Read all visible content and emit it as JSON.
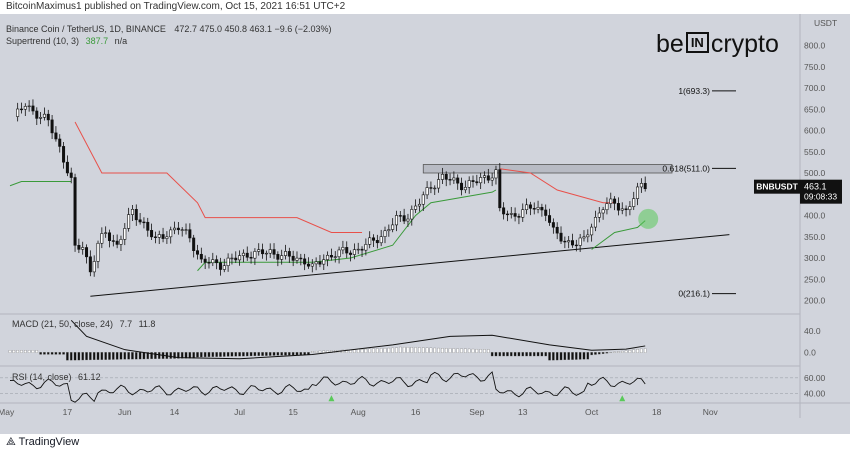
{
  "header": {
    "published": "BitcoinMaximus1 published on TradingView.com, Oct 15, 2021 16:51 UTC+2"
  },
  "legend": {
    "symbol": "Binance Coin / TetherUS, 1D, BINANCE",
    "ohlc": "472.7   475.0   450.8   463.1  −9.6 (−2.03%)",
    "supertrend_label": "Supertrend (10, 3)",
    "supertrend_value": "387.7",
    "supertrend_extra": "n/a"
  },
  "logo": {
    "left": "be",
    "box": "IN",
    "right": "crypto"
  },
  "price_badge": {
    "symbol": "BNBUSDT",
    "price": "463.1",
    "countdown": "09:08:33"
  },
  "macd_legend": {
    "label": "MACD (21, 50, close, 24)",
    "v1": "7.7",
    "v2": "11.8"
  },
  "rsi_legend": {
    "label": "RSI (14, close)",
    "value": "61.12"
  },
  "footer": {
    "brand": "TradingView"
  },
  "colors": {
    "supertrend_up": "#3a9a3a",
    "supertrend_down": "#e8504a",
    "candle": "#111111",
    "background": "#d1d4dc",
    "highlight": "#5ac95a"
  },
  "chart_data": [
    {
      "type": "candlestick",
      "title": "Binance Coin / TetherUS, 1D, BINANCE",
      "currency": "USDT",
      "y_ticks": [
        "800.0",
        "750.0",
        "700.0",
        "650.0",
        "600.0",
        "550.0",
        "500.0",
        "450.0",
        "400.0",
        "350.0",
        "300.0",
        "250.0",
        "200.0"
      ],
      "x_ticks": [
        "May",
        "17",
        "Jun",
        "14",
        "Jul",
        "15",
        "Aug",
        "16",
        "Sep",
        "13",
        "Oct",
        "18",
        "Nov"
      ],
      "ylim": [
        180,
        820
      ],
      "fib_labels": [
        {
          "label": "1(693.3)",
          "value": 693.3
        },
        {
          "label": "0.618(511.0)",
          "value": 511.0
        },
        {
          "label": "0(216.1)",
          "value": 216.1
        }
      ],
      "resistance_zone": [
        500,
        520
      ],
      "support_line": [
        {
          "date": "2021-05-23",
          "value": 210
        },
        {
          "date": "2021-11-06",
          "value": 355
        }
      ],
      "closes": [
        {
          "date": "2021-05-03",
          "close": 630
        },
        {
          "date": "2021-05-06",
          "close": 660
        },
        {
          "date": "2021-05-09",
          "close": 640
        },
        {
          "date": "2021-05-12",
          "close": 620
        },
        {
          "date": "2021-05-15",
          "close": 560
        },
        {
          "date": "2021-05-18",
          "close": 480
        },
        {
          "date": "2021-05-19",
          "close": 320
        },
        {
          "date": "2021-05-21",
          "close": 330
        },
        {
          "date": "2021-05-23",
          "close": 270
        },
        {
          "date": "2021-05-25",
          "close": 330
        },
        {
          "date": "2021-05-27",
          "close": 360
        },
        {
          "date": "2021-05-30",
          "close": 330
        },
        {
          "date": "2021-06-03",
          "close": 410
        },
        {
          "date": "2021-06-06",
          "close": 380
        },
        {
          "date": "2021-06-09",
          "close": 340
        },
        {
          "date": "2021-06-12",
          "close": 360
        },
        {
          "date": "2021-06-15",
          "close": 370
        },
        {
          "date": "2021-06-18",
          "close": 350
        },
        {
          "date": "2021-06-21",
          "close": 290
        },
        {
          "date": "2021-06-23",
          "close": 290
        },
        {
          "date": "2021-06-26",
          "close": 285
        },
        {
          "date": "2021-06-29",
          "close": 295
        },
        {
          "date": "2021-07-03",
          "close": 310
        },
        {
          "date": "2021-07-06",
          "close": 310
        },
        {
          "date": "2021-07-09",
          "close": 315
        },
        {
          "date": "2021-07-12",
          "close": 305
        },
        {
          "date": "2021-07-15",
          "close": 300
        },
        {
          "date": "2021-07-18",
          "close": 295
        },
        {
          "date": "2021-07-20",
          "close": 275
        },
        {
          "date": "2021-07-23",
          "close": 300
        },
        {
          "date": "2021-07-26",
          "close": 310
        },
        {
          "date": "2021-07-29",
          "close": 315
        },
        {
          "date": "2021-08-01",
          "close": 320
        },
        {
          "date": "2021-08-05",
          "close": 340
        },
        {
          "date": "2021-08-08",
          "close": 360
        },
        {
          "date": "2021-08-11",
          "close": 390
        },
        {
          "date": "2021-08-14",
          "close": 400
        },
        {
          "date": "2021-08-17",
          "close": 430
        },
        {
          "date": "2021-08-20",
          "close": 470
        },
        {
          "date": "2021-08-23",
          "close": 490
        },
        {
          "date": "2021-08-26",
          "close": 480
        },
        {
          "date": "2021-08-29",
          "close": 470
        },
        {
          "date": "2021-09-01",
          "close": 480
        },
        {
          "date": "2021-09-03",
          "close": 490
        },
        {
          "date": "2021-09-06",
          "close": 500
        },
        {
          "date": "2021-09-07",
          "close": 410
        },
        {
          "date": "2021-09-10",
          "close": 400
        },
        {
          "date": "2021-09-13",
          "close": 410
        },
        {
          "date": "2021-09-16",
          "close": 420
        },
        {
          "date": "2021-09-19",
          "close": 410
        },
        {
          "date": "2021-09-21",
          "close": 360
        },
        {
          "date": "2021-09-24",
          "close": 340
        },
        {
          "date": "2021-09-27",
          "close": 335
        },
        {
          "date": "2021-09-29",
          "close": 340
        },
        {
          "date": "2021-10-01",
          "close": 380
        },
        {
          "date": "2021-10-04",
          "close": 420
        },
        {
          "date": "2021-10-07",
          "close": 430
        },
        {
          "date": "2021-10-10",
          "close": 410
        },
        {
          "date": "2021-10-12",
          "close": 440
        },
        {
          "date": "2021-10-14",
          "close": 472
        },
        {
          "date": "2021-10-15",
          "close": 463
        }
      ]
    },
    {
      "type": "line",
      "name": "MACD (21, 50, close, 24)",
      "y_ticks": [
        "40.0",
        "0.0"
      ],
      "ylim": [
        -20,
        55
      ]
    },
    {
      "type": "line",
      "name": "RSI (14, close)",
      "y_ticks": [
        "60.00",
        "40.00"
      ],
      "ylim": [
        28,
        70
      ]
    }
  ]
}
